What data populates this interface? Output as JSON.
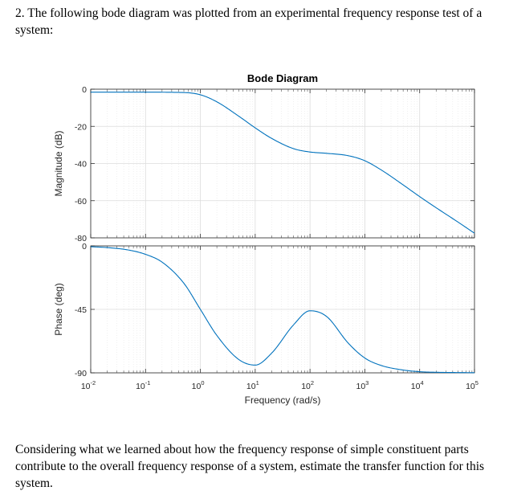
{
  "question": {
    "intro": "2. The following bode diagram was plotted from an experimental frequency response test of a system:",
    "prompt": "Considering what we learned about how the frequency response of simple constituent parts contribute to the overall frequency response of a system, estimate the transfer function for this system."
  },
  "chart_data": {
    "type": "line",
    "title": "Bode Diagram",
    "xlabel": "Frequency (rad/s)",
    "x_scale": "log",
    "xlim": [
      0.01,
      100000
    ],
    "x_ticks": [
      {
        "base": "10",
        "exp": "-2"
      },
      {
        "base": "10",
        "exp": "-1"
      },
      {
        "base": "10",
        "exp": "0"
      },
      {
        "base": "10",
        "exp": "1"
      },
      {
        "base": "10",
        "exp": "2"
      },
      {
        "base": "10",
        "exp": "3"
      },
      {
        "base": "10",
        "exp": "4"
      },
      {
        "base": "10",
        "exp": "5"
      }
    ],
    "grid": true,
    "line_color": "#0072BD",
    "magnitude": {
      "ylabel": "Magnitude (dB)",
      "ylim": [
        -80,
        0
      ],
      "y_ticks": [
        0,
        -20,
        -40,
        -60,
        -80
      ],
      "x": [
        0.01,
        0.1,
        0.5,
        1,
        2,
        5,
        10,
        20,
        50,
        100,
        200,
        500,
        1000,
        2000,
        5000,
        10000,
        20000,
        50000,
        100000
      ],
      "y": [
        -1.6,
        -1.6,
        -1.8,
        -3.0,
        -6.8,
        -14.5,
        -20.8,
        -26.5,
        -32.0,
        -33.8,
        -34.5,
        -35.8,
        -38.5,
        -43.5,
        -51.5,
        -57.8,
        -63.8,
        -71.5,
        -77.5
      ]
    },
    "phase": {
      "ylabel": "Phase (deg)",
      "ylim": [
        -90,
        0
      ],
      "y_ticks": [
        0,
        -45,
        -90
      ],
      "x": [
        0.01,
        0.02,
        0.05,
        0.1,
        0.2,
        0.5,
        1,
        2,
        5,
        10,
        20,
        50,
        100,
        200,
        500,
        1000,
        2000,
        5000,
        10000,
        20000,
        50000,
        100000
      ],
      "y": [
        -0.6,
        -1.2,
        -3.0,
        -6.0,
        -11.5,
        -26.5,
        -45.0,
        -63.5,
        -80.5,
        -84.5,
        -76.0,
        -56.0,
        -46.0,
        -50.0,
        -69.0,
        -79.5,
        -84.8,
        -88.0,
        -89.2,
        -89.6,
        -89.8,
        -89.9
      ]
    }
  }
}
